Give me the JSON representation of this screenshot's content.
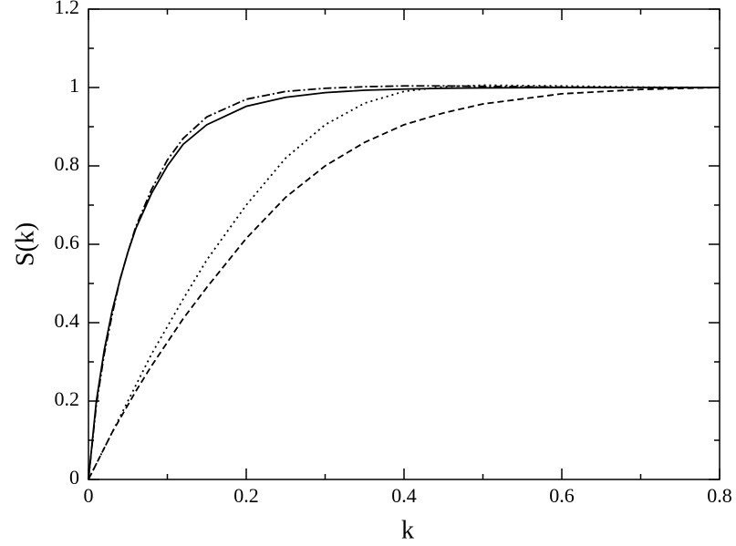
{
  "chart_data": {
    "type": "line",
    "xlabel": "k",
    "ylabel": "S(k)",
    "x": [
      0,
      0.01,
      0.02,
      0.03,
      0.04,
      0.05,
      0.06,
      0.08,
      0.1,
      0.12,
      0.15,
      0.2,
      0.25,
      0.3,
      0.35,
      0.4,
      0.45,
      0.5,
      0.6,
      0.7,
      0.8
    ],
    "series": [
      {
        "color": "#000000",
        "style": "solid",
        "values": [
          0,
          0.2,
          0.33,
          0.43,
          0.51,
          0.58,
          0.64,
          0.73,
          0.8,
          0.855,
          0.905,
          0.952,
          0.975,
          0.987,
          0.993,
          0.996,
          0.998,
          0.999,
          1,
          1,
          1
        ]
      },
      {
        "color": "#000000",
        "style": "dashdot",
        "values": [
          0,
          0.19,
          0.32,
          0.42,
          0.51,
          0.58,
          0.645,
          0.74,
          0.815,
          0.87,
          0.925,
          0.97,
          0.99,
          0.998,
          1.002,
          1.004,
          1.004,
          1.003,
          1.001,
          1,
          1
        ]
      },
      {
        "color": "#000000",
        "style": "dotted",
        "values": [
          0,
          0.04,
          0.08,
          0.12,
          0.16,
          0.2,
          0.24,
          0.32,
          0.39,
          0.46,
          0.56,
          0.7,
          0.82,
          0.905,
          0.96,
          0.99,
          1.002,
          1.006,
          1.004,
          1.001,
          1
        ]
      },
      {
        "color": "#000000",
        "style": "dashed",
        "values": [
          0,
          0.04,
          0.08,
          0.12,
          0.155,
          0.19,
          0.225,
          0.29,
          0.35,
          0.41,
          0.49,
          0.615,
          0.72,
          0.8,
          0.86,
          0.905,
          0.935,
          0.958,
          0.984,
          0.995,
          1
        ]
      }
    ],
    "xlim": [
      0,
      0.8
    ],
    "xticks": [
      0,
      0.2,
      0.4,
      0.6,
      0.8
    ],
    "xminorticks": [
      0.1,
      0.3,
      0.5,
      0.7
    ],
    "ylim": [
      0,
      1.2
    ],
    "yticks": [
      0,
      0.2,
      0.4,
      0.6,
      0.8,
      1,
      1.2
    ],
    "yminorticks": [
      0.1,
      0.3,
      0.5,
      0.7,
      0.9,
      1.1
    ],
    "grid": false
  }
}
